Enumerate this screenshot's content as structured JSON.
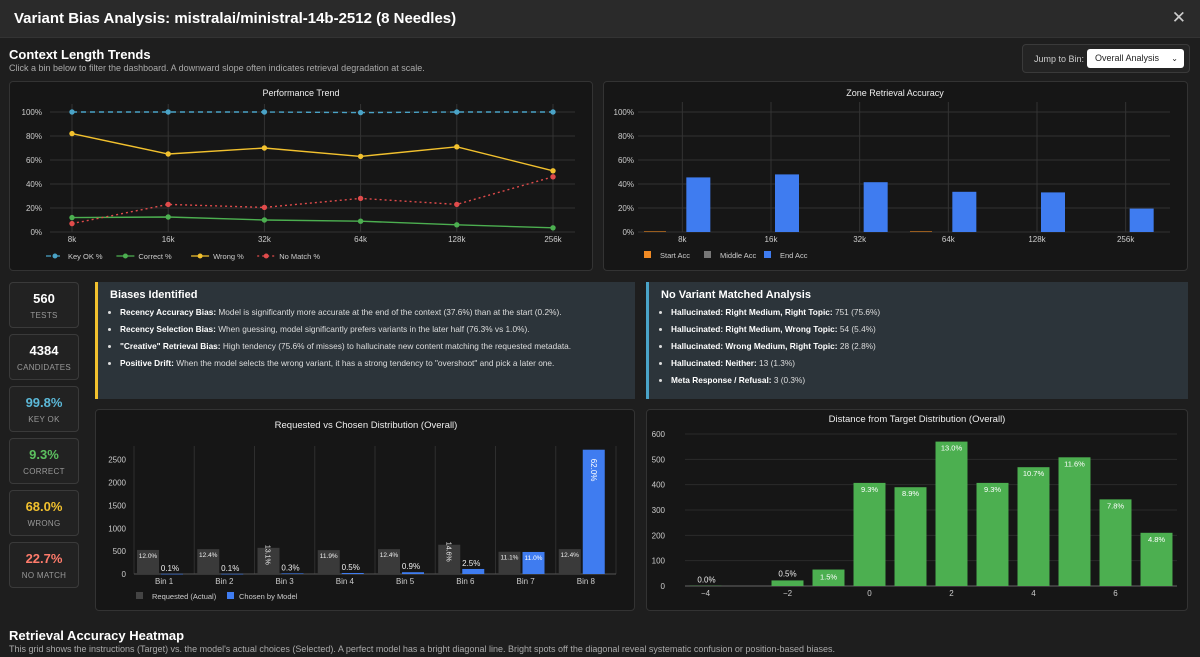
{
  "window": {
    "title": "Variant Bias Analysis: mistralai/ministral-14b-2512 (8 Needles)",
    "close_icon": "close-icon"
  },
  "trends": {
    "title": "Context Length Trends",
    "subtitle": "Click a bin below to filter the dashboard. A downward slope often indicates retrieval degradation at scale.",
    "jump_label": "Jump to Bin:",
    "jump_value": "Overall Analysis"
  },
  "colors": {
    "key_ok": "#4aa3c7",
    "correct": "#4caf50",
    "wrong": "#f2c12e",
    "no_match": "#e04b4b",
    "start": "#f08a24",
    "middle": "#777777",
    "end": "#3f7cf0",
    "requested": "#3a3a3a",
    "chosen": "#3f7cf0"
  },
  "chart_data": [
    {
      "id": "performance-trend",
      "type": "line",
      "title": "Performance Trend",
      "x": [
        "8k",
        "16k",
        "32k",
        "64k",
        "128k",
        "256k"
      ],
      "ylim": [
        0,
        100
      ],
      "yticks": [
        "0%",
        "20%",
        "40%",
        "60%",
        "80%",
        "100%"
      ],
      "series": [
        {
          "name": "Key OK %",
          "values": [
            100,
            100,
            100,
            99.5,
            100,
            100
          ]
        },
        {
          "name": "Correct %",
          "values": [
            12,
            12.5,
            10,
            9,
            6,
            3.5
          ]
        },
        {
          "name": "Wrong %",
          "values": [
            82,
            65,
            70,
            63,
            71,
            51
          ]
        },
        {
          "name": "No Match %",
          "values": [
            7,
            23,
            20.5,
            28,
            23,
            46
          ]
        }
      ]
    },
    {
      "id": "zone-retrieval",
      "type": "bar",
      "title": "Zone Retrieval Accuracy",
      "categories": [
        "8k",
        "16k",
        "32k",
        "64k",
        "128k",
        "256k"
      ],
      "ylim": [
        0,
        100
      ],
      "yticks": [
        "0%",
        "20%",
        "40%",
        "60%",
        "80%",
        "100%"
      ],
      "series": [
        {
          "name": "Start Acc",
          "values": [
            0.5,
            0,
            0,
            0.5,
            0,
            0
          ]
        },
        {
          "name": "Middle Acc",
          "values": [
            0,
            0,
            0,
            0,
            0,
            0
          ]
        },
        {
          "name": "End Acc",
          "values": [
            45.5,
            48,
            41.5,
            33.5,
            33,
            19.5
          ]
        }
      ]
    },
    {
      "id": "requested-vs-chosen",
      "type": "bar",
      "title": "Requested vs Chosen Distribution (Overall)",
      "categories": [
        "Bin 1",
        "Bin 2",
        "Bin 3",
        "Bin 4",
        "Bin 5",
        "Bin 6",
        "Bin 7",
        "Bin 8"
      ],
      "ylim": [
        0,
        2800
      ],
      "yticks": [
        "0",
        "500",
        "1000",
        "1500",
        "2000",
        "2500"
      ],
      "series": [
        {
          "name": "Requested (Actual)",
          "values": [
            526,
            544,
            573,
            522,
            544,
            640,
            487,
            544
          ],
          "labels": [
            "12.0%",
            "12.4%",
            "13.1%",
            "11.9%",
            "12.4%",
            "14.6%",
            "11.1%",
            "12.4%"
          ]
        },
        {
          "name": "Chosen by Model",
          "values": [
            4,
            4,
            13,
            22,
            39,
            110,
            482,
            2719
          ],
          "labels": [
            "0.1%",
            "0.1%",
            "0.3%",
            "0.5%",
            "0.9%",
            "2.5%",
            "11.0%",
            "62.0%"
          ]
        }
      ]
    },
    {
      "id": "distance-from-target",
      "type": "bar",
      "title": "Distance from Target Distribution (Overall)",
      "x": [
        -4,
        -3,
        -2,
        -1,
        0,
        1,
        2,
        3,
        4,
        5,
        6,
        7
      ],
      "xticks": [
        "−4",
        "−2",
        "0",
        "2",
        "4",
        "6"
      ],
      "ylim": [
        0,
        600
      ],
      "yticks": [
        "0",
        "100",
        "200",
        "300",
        "400",
        "500",
        "600"
      ],
      "values": [
        1,
        0,
        22,
        65,
        407,
        390,
        570,
        407,
        469,
        508,
        342,
        210
      ],
      "labels": [
        "0.0%",
        "",
        "0.5%",
        "1.5%",
        "9.3%",
        "8.9%",
        "13.0%",
        "9.3%",
        "10.7%",
        "11.6%",
        "7.8%",
        "4.8%"
      ]
    }
  ],
  "stats": [
    {
      "value": "560",
      "label": "TESTS",
      "color": "#ffffff"
    },
    {
      "value": "4384",
      "label": "CANDIDATES",
      "color": "#ffffff"
    },
    {
      "value": "99.8%",
      "label": "KEY OK",
      "color": "#5bb8d8"
    },
    {
      "value": "9.3%",
      "label": "CORRECT",
      "color": "#5cc05f"
    },
    {
      "value": "68.0%",
      "label": "WRONG",
      "color": "#f2c12e"
    },
    {
      "value": "22.7%",
      "label": "NO MATCH",
      "color": "#ff7b6b"
    }
  ],
  "biases": {
    "title": "Biases Identified",
    "items": [
      {
        "bold": "Recency Accuracy Bias:",
        "text": " Model is significantly more accurate at the end of the context (37.6%) than at the start (0.2%)."
      },
      {
        "bold": "Recency Selection Bias:",
        "text": " When guessing, model significantly prefers variants in the later half (76.3% vs 1.0%)."
      },
      {
        "bold": "\"Creative\" Retrieval Bias:",
        "text": " High tendency (75.6% of misses) to hallucinate new content matching the requested metadata."
      },
      {
        "bold": "Positive Drift:",
        "text": " When the model selects the wrong variant, it has a strong tendency to \"overshoot\" and pick a later one."
      }
    ]
  },
  "nomatch": {
    "title": "No Variant Matched Analysis",
    "items": [
      {
        "bold": "Hallucinated: Right Medium, Right Topic:",
        "text": " 751 (75.6%)"
      },
      {
        "bold": "Hallucinated: Right Medium, Wrong Topic:",
        "text": " 54 (5.4%)"
      },
      {
        "bold": "Hallucinated: Wrong Medium, Right Topic:",
        "text": " 28 (2.8%)"
      },
      {
        "bold": "Hallucinated: Neither:",
        "text": " 13 (1.3%)"
      },
      {
        "bold": "Meta Response / Refusal:",
        "text": " 3 (0.3%)"
      }
    ]
  },
  "heatmap": {
    "title": "Retrieval Accuracy Heatmap",
    "subtitle": "This grid shows the instructions (Target) vs. the model's actual choices (Selected). A perfect model has a bright diagonal line. Bright spots off the diagonal reveal systematic confusion or position-based biases."
  }
}
